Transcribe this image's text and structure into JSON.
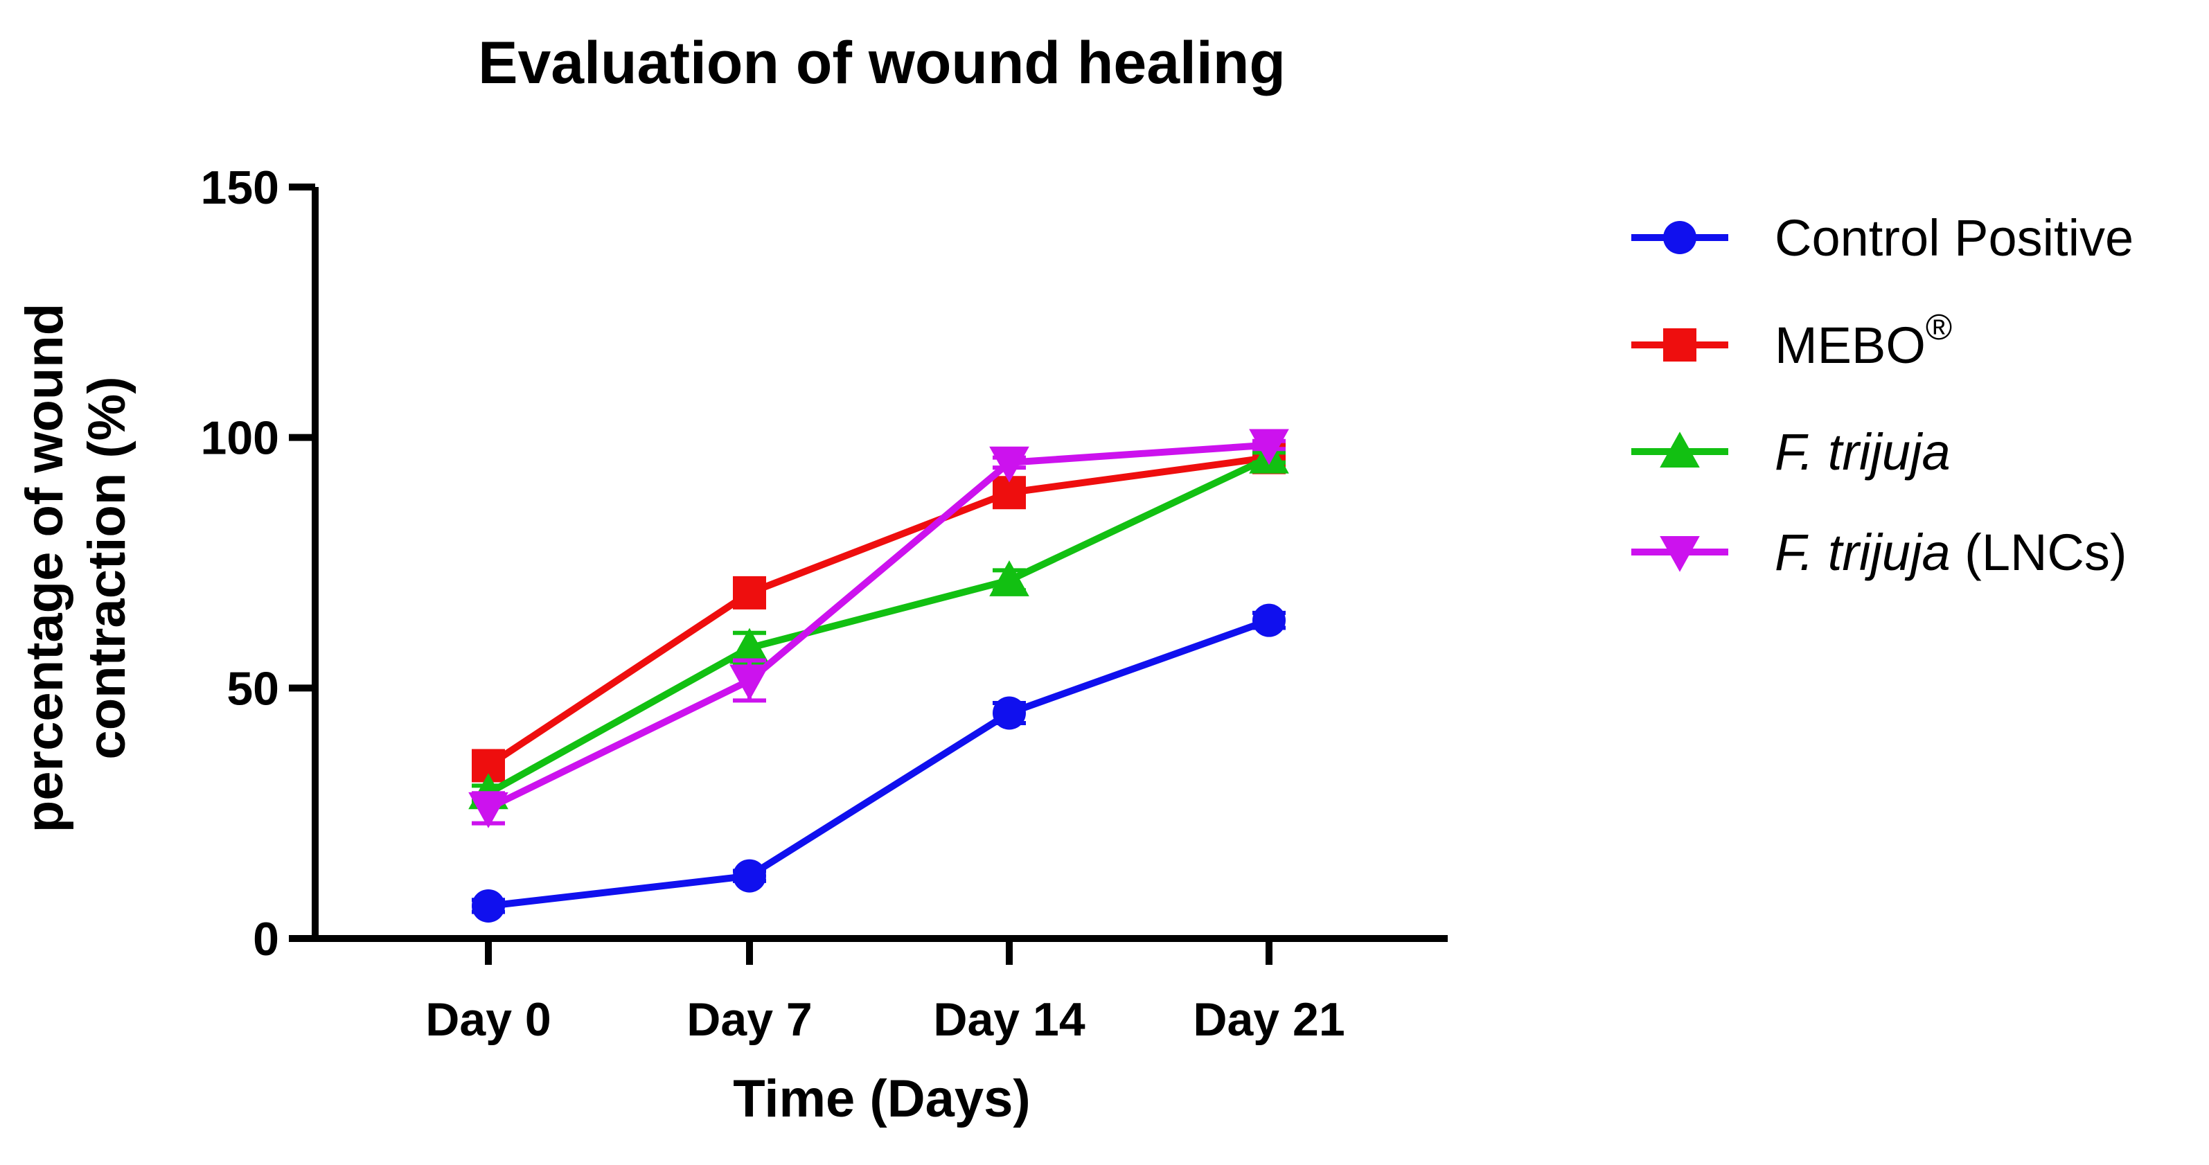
{
  "chart_data": {
    "type": "line",
    "title": "Evaluation of wound healing",
    "xlabel": "Time (Days)",
    "ylabel_lines": [
      "percentage of wound",
      "contraction (%)"
    ],
    "categories": [
      "Day 0",
      "Day 7",
      "Day 14",
      "Day 21"
    ],
    "ylim": [
      0,
      150
    ],
    "yticks": [
      0,
      50,
      100,
      150
    ],
    "grid": false,
    "legend_position": "right",
    "series": [
      {
        "name": "Control Positive",
        "label_italic": "",
        "label_rest": "Control Positive",
        "label_sup": "",
        "marker": "circle",
        "color": "#1010ee",
        "values": [
          6.5,
          12.5,
          45,
          63.5
        ],
        "errors": [
          1.2,
          1.0,
          2.0,
          1.5
        ]
      },
      {
        "name": "MEBO®",
        "label_italic": "",
        "label_rest": "MEBO",
        "label_sup": "®",
        "marker": "square",
        "color": "#ee0e0e",
        "values": [
          34.5,
          69,
          89,
          96
        ],
        "errors": [
          1.0,
          1.0,
          1.0,
          0.8
        ]
      },
      {
        "name": "F. trijuja",
        "label_italic": "F. trijuja",
        "label_rest": "",
        "label_sup": "",
        "marker": "triangle-up",
        "color": "#12c012",
        "values": [
          29,
          58,
          71.5,
          96
        ],
        "errors": [
          1.5,
          3.0,
          2.0,
          1.0
        ]
      },
      {
        "name": "F. trijuja (LNCs)",
        "label_italic": "F. trijuja",
        "label_rest": " (LNCs)",
        "label_sup": "",
        "marker": "triangle-down",
        "color": "#cc12ee",
        "values": [
          26,
          51.5,
          95,
          98.5
        ],
        "errors": [
          3.0,
          4.0,
          1.0,
          0.8
        ]
      }
    ]
  }
}
